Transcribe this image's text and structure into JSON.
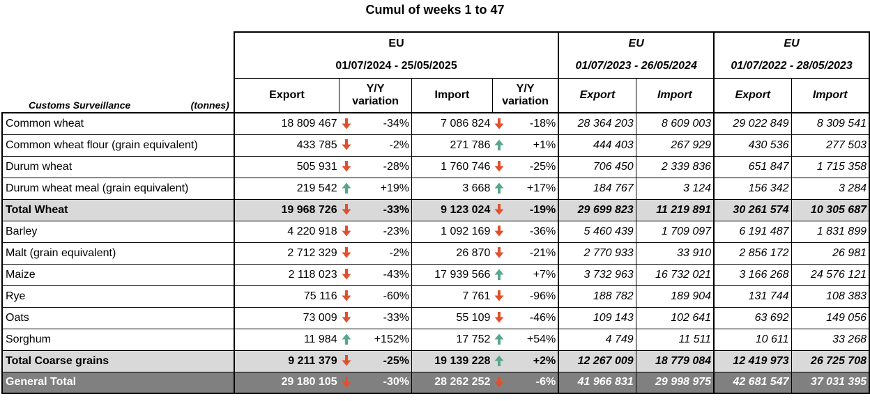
{
  "title": "Cumul of weeks 1 to 47",
  "labels": {
    "customs": "Customs Surveillance",
    "unit": "(tonnes)"
  },
  "groups": [
    {
      "region": "EU",
      "period": "01/07/2024 - 25/05/2025"
    },
    {
      "region": "EU",
      "period": "01/07/2023 - 26/05/2024"
    },
    {
      "region": "EU",
      "period": "01/07/2022 - 28/05/2023"
    }
  ],
  "columns": {
    "export": "Export",
    "yy": "Y/Y variation",
    "yy_line1": "Y/Y",
    "yy_line2": "variation",
    "import": "Import"
  },
  "colors": {
    "down": "#e0502d",
    "up": "#5aa68a",
    "total_bg": "#d9d9d9",
    "grand_bg": "#808080"
  },
  "rows": [
    {
      "name": "Common wheat",
      "type": "normal",
      "exp": "18 809 467",
      "exp_dir": "down",
      "exp_var": "-34%",
      "imp": "7 086 824",
      "imp_dir": "down",
      "imp_var": "-18%",
      "exp_2023": "28 364 203",
      "imp_2023": "8 609 003",
      "exp_2022": "29 022 849",
      "imp_2022": "8 309 541"
    },
    {
      "name": "Common wheat flour (grain equivalent)",
      "type": "normal",
      "exp": "433 785",
      "exp_dir": "down",
      "exp_var": "-2%",
      "imp": "271 786",
      "imp_dir": "up",
      "imp_var": "+1%",
      "exp_2023": "444 403",
      "imp_2023": "267 929",
      "exp_2022": "430 536",
      "imp_2022": "277 503"
    },
    {
      "name": "Durum wheat",
      "type": "normal",
      "exp": "505 931",
      "exp_dir": "down",
      "exp_var": "-28%",
      "imp": "1 760 746",
      "imp_dir": "down",
      "imp_var": "-25%",
      "exp_2023": "706 450",
      "imp_2023": "2 339 836",
      "exp_2022": "651 847",
      "imp_2022": "1 715 358"
    },
    {
      "name": "Durum wheat meal (grain equivalent)",
      "type": "normal",
      "exp": "219 542",
      "exp_dir": "up",
      "exp_var": "+19%",
      "imp": "3 668",
      "imp_dir": "up",
      "imp_var": "+17%",
      "exp_2023": "184 767",
      "imp_2023": "3 124",
      "exp_2022": "156 342",
      "imp_2022": "3 284"
    },
    {
      "name": "Total Wheat",
      "type": "total",
      "exp": "19 968 726",
      "exp_dir": "down",
      "exp_var": "-33%",
      "imp": "9 123 024",
      "imp_dir": "down",
      "imp_var": "-19%",
      "exp_2023": "29 699 823",
      "imp_2023": "11 219 891",
      "exp_2022": "30 261 574",
      "imp_2022": "10 305 687"
    },
    {
      "name": "Barley",
      "type": "normal",
      "exp": "4 220 918",
      "exp_dir": "down",
      "exp_var": "-23%",
      "imp": "1 092 169",
      "imp_dir": "down",
      "imp_var": "-36%",
      "exp_2023": "5 460 439",
      "imp_2023": "1 709 097",
      "exp_2022": "6 191 487",
      "imp_2022": "1 831 899"
    },
    {
      "name": "Malt (grain equivalent)",
      "type": "normal",
      "exp": "2 712 329",
      "exp_dir": "down",
      "exp_var": "-2%",
      "imp": "26 870",
      "imp_dir": "down",
      "imp_var": "-21%",
      "exp_2023": "2 770 933",
      "imp_2023": "33 910",
      "exp_2022": "2 856 172",
      "imp_2022": "26 981"
    },
    {
      "name": "Maize",
      "type": "normal",
      "exp": "2 118 023",
      "exp_dir": "down",
      "exp_var": "-43%",
      "imp": "17 939 566",
      "imp_dir": "up",
      "imp_var": "+7%",
      "exp_2023": "3 732 963",
      "imp_2023": "16 732 021",
      "exp_2022": "3 166 268",
      "imp_2022": "24 576 121"
    },
    {
      "name": "Rye",
      "type": "normal",
      "exp": "75 116",
      "exp_dir": "down",
      "exp_var": "-60%",
      "imp": "7 761",
      "imp_dir": "down",
      "imp_var": "-96%",
      "exp_2023": "188 782",
      "imp_2023": "189 904",
      "exp_2022": "131 744",
      "imp_2022": "108 383"
    },
    {
      "name": "Oats",
      "type": "normal",
      "exp": "73 009",
      "exp_dir": "down",
      "exp_var": "-33%",
      "imp": "55 109",
      "imp_dir": "down",
      "imp_var": "-46%",
      "exp_2023": "109 143",
      "imp_2023": "102 641",
      "exp_2022": "63 692",
      "imp_2022": "149 056"
    },
    {
      "name": "Sorghum",
      "type": "normal",
      "exp": "11 984",
      "exp_dir": "up",
      "exp_var": "+152%",
      "imp": "17 752",
      "imp_dir": "up",
      "imp_var": "+54%",
      "exp_2023": "4 749",
      "imp_2023": "11 511",
      "exp_2022": "10 611",
      "imp_2022": "33 268"
    },
    {
      "name": "Total Coarse grains",
      "type": "total",
      "exp": "9 211 379",
      "exp_dir": "down",
      "exp_var": "-25%",
      "imp": "19 139 228",
      "imp_dir": "up",
      "imp_var": "+2%",
      "exp_2023": "12 267 009",
      "imp_2023": "18 779 084",
      "exp_2022": "12 419 973",
      "imp_2022": "26 725 708"
    },
    {
      "name": "General Total",
      "type": "grand",
      "exp": "29 180 105",
      "exp_dir": "down",
      "exp_var": "-30%",
      "imp": "28 262 252",
      "imp_dir": "down",
      "imp_var": "-6%",
      "exp_2023": "41 966 831",
      "imp_2023": "29 998 975",
      "exp_2022": "42 681 547",
      "imp_2022": "37 031 395"
    }
  ]
}
